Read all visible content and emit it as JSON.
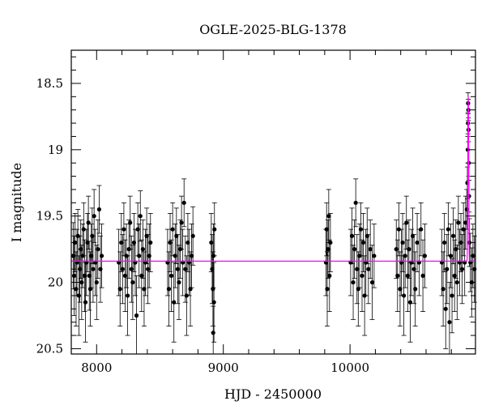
{
  "chart_data": {
    "type": "scatter",
    "title": "OGLE-2025-BLG-1378",
    "xlabel": "HJD - 2450000",
    "ylabel": "I magnitude",
    "xlim": [
      7800,
      10990
    ],
    "ylim": [
      20.54,
      18.25
    ],
    "y_inverted": true,
    "x_ticks": [
      8000,
      9000,
      10000
    ],
    "y_ticks": [
      18.5,
      19,
      19.5,
      20,
      20.5
    ],
    "y_tick_labels": [
      "18.5",
      "19",
      "19.5",
      "20",
      "20.5"
    ],
    "grid": false,
    "colors": {
      "points": "#000000",
      "model": "#ff00ff"
    },
    "model": {
      "baseline_mag": 19.84,
      "peak_hjd": 10933,
      "peak_mag": 18.6,
      "width_days": 4
    },
    "points": [
      [
        7815,
        19.8,
        0.25
      ],
      [
        7822,
        19.95,
        0.3
      ],
      [
        7830,
        19.7,
        0.22
      ],
      [
        7838,
        20.05,
        0.28
      ],
      [
        7845,
        19.85,
        0.25
      ],
      [
        7852,
        19.65,
        0.2
      ],
      [
        7860,
        20.1,
        0.3
      ],
      [
        7868,
        19.9,
        0.25
      ],
      [
        7875,
        19.75,
        0.22
      ],
      [
        7882,
        20.0,
        0.28
      ],
      [
        7890,
        19.8,
        0.24
      ],
      [
        7898,
        19.6,
        0.2
      ],
      [
        7905,
        19.95,
        0.27
      ],
      [
        7912,
        20.15,
        0.3
      ],
      [
        7920,
        19.85,
        0.25
      ],
      [
        7928,
        19.7,
        0.22
      ],
      [
        7935,
        19.55,
        0.2
      ],
      [
        7942,
        19.95,
        0.26
      ],
      [
        7950,
        20.05,
        0.28
      ],
      [
        7958,
        19.8,
        0.24
      ],
      [
        7965,
        19.65,
        0.21
      ],
      [
        7972,
        19.9,
        0.25
      ],
      [
        7980,
        19.5,
        0.2
      ],
      [
        7990,
        19.85,
        0.25
      ],
      [
        8000,
        20.0,
        0.28
      ],
      [
        8010,
        19.75,
        0.22
      ],
      [
        8020,
        19.45,
        0.18
      ],
      [
        8030,
        19.9,
        0.25
      ],
      [
        8040,
        19.8,
        0.24
      ],
      [
        8175,
        19.85,
        0.25
      ],
      [
        8185,
        20.05,
        0.28
      ],
      [
        8195,
        19.7,
        0.22
      ],
      [
        8205,
        19.9,
        0.26
      ],
      [
        8215,
        19.6,
        0.2
      ],
      [
        8225,
        19.95,
        0.27
      ],
      [
        8235,
        19.8,
        0.24
      ],
      [
        8245,
        20.1,
        0.3
      ],
      [
        8255,
        19.75,
        0.22
      ],
      [
        8265,
        19.55,
        0.2
      ],
      [
        8275,
        19.9,
        0.25
      ],
      [
        8285,
        20.0,
        0.28
      ],
      [
        8295,
        19.7,
        0.22
      ],
      [
        8305,
        19.85,
        0.25
      ],
      [
        8315,
        20.25,
        0.3
      ],
      [
        8325,
        19.6,
        0.2
      ],
      [
        8335,
        19.8,
        0.24
      ],
      [
        8345,
        19.5,
        0.19
      ],
      [
        8355,
        19.95,
        0.27
      ],
      [
        8365,
        19.75,
        0.22
      ],
      [
        8375,
        20.05,
        0.28
      ],
      [
        8385,
        19.85,
        0.25
      ],
      [
        8395,
        19.65,
        0.21
      ],
      [
        8405,
        19.9,
        0.26
      ],
      [
        8415,
        19.8,
        0.24
      ],
      [
        8425,
        19.7,
        0.22
      ],
      [
        8560,
        19.85,
        0.25
      ],
      [
        8570,
        20.05,
        0.28
      ],
      [
        8580,
        19.7,
        0.22
      ],
      [
        8590,
        19.95,
        0.27
      ],
      [
        8600,
        19.6,
        0.2
      ],
      [
        8610,
        20.15,
        0.3
      ],
      [
        8620,
        19.8,
        0.24
      ],
      [
        8630,
        19.65,
        0.21
      ],
      [
        8640,
        19.9,
        0.26
      ],
      [
        8650,
        20.0,
        0.28
      ],
      [
        8660,
        19.75,
        0.22
      ],
      [
        8670,
        19.55,
        0.2
      ],
      [
        8680,
        19.85,
        0.25
      ],
      [
        8690,
        19.4,
        0.18
      ],
      [
        8700,
        19.9,
        0.25
      ],
      [
        8710,
        20.1,
        0.3
      ],
      [
        8720,
        19.7,
        0.22
      ],
      [
        8730,
        19.85,
        0.25
      ],
      [
        8740,
        20.05,
        0.28
      ],
      [
        8750,
        19.8,
        0.24
      ],
      [
        8760,
        19.65,
        0.22
      ],
      [
        8905,
        19.7,
        0.22
      ],
      [
        8912,
        19.9,
        0.26
      ],
      [
        8918,
        20.05,
        0.28
      ],
      [
        8922,
        19.8,
        0.24
      ],
      [
        8926,
        20.15,
        0.3
      ],
      [
        8930,
        19.6,
        0.2
      ],
      [
        8920,
        20.38,
        0.2
      ],
      [
        9810,
        19.85,
        0.25
      ],
      [
        9815,
        19.6,
        0.2
      ],
      [
        9820,
        20.05,
        0.28
      ],
      [
        9826,
        19.75,
        0.22
      ],
      [
        9832,
        19.5,
        0.2
      ],
      [
        9838,
        19.95,
        0.27
      ],
      [
        9845,
        19.7,
        0.22
      ],
      [
        10005,
        19.85,
        0.25
      ],
      [
        10015,
        19.65,
        0.21
      ],
      [
        10025,
        20.0,
        0.28
      ],
      [
        10035,
        19.75,
        0.22
      ],
      [
        10045,
        19.4,
        0.18
      ],
      [
        10055,
        19.9,
        0.26
      ],
      [
        10065,
        20.05,
        0.28
      ],
      [
        10075,
        19.8,
        0.24
      ],
      [
        10085,
        19.6,
        0.2
      ],
      [
        10095,
        19.95,
        0.27
      ],
      [
        10105,
        19.7,
        0.22
      ],
      [
        10115,
        20.1,
        0.3
      ],
      [
        10125,
        19.85,
        0.25
      ],
      [
        10135,
        19.65,
        0.21
      ],
      [
        10145,
        19.9,
        0.26
      ],
      [
        10160,
        19.75,
        0.22
      ],
      [
        10175,
        20.0,
        0.28
      ],
      [
        10190,
        19.8,
        0.24
      ],
      [
        10365,
        19.75,
        0.22
      ],
      [
        10375,
        19.95,
        0.27
      ],
      [
        10385,
        19.6,
        0.2
      ],
      [
        10395,
        20.05,
        0.28
      ],
      [
        10405,
        19.85,
        0.25
      ],
      [
        10415,
        19.7,
        0.22
      ],
      [
        10425,
        20.1,
        0.3
      ],
      [
        10435,
        19.8,
        0.24
      ],
      [
        10445,
        19.55,
        0.2
      ],
      [
        10455,
        19.95,
        0.27
      ],
      [
        10465,
        19.75,
        0.22
      ],
      [
        10475,
        20.15,
        0.3
      ],
      [
        10485,
        19.85,
        0.25
      ],
      [
        10495,
        19.65,
        0.21
      ],
      [
        10505,
        19.9,
        0.26
      ],
      [
        10515,
        20.05,
        0.28
      ],
      [
        10530,
        19.7,
        0.22
      ],
      [
        10545,
        19.85,
        0.25
      ],
      [
        10560,
        19.6,
        0.2
      ],
      [
        10575,
        19.95,
        0.27
      ],
      [
        10590,
        19.8,
        0.24
      ],
      [
        10725,
        19.85,
        0.25
      ],
      [
        10735,
        20.05,
        0.28
      ],
      [
        10745,
        19.7,
        0.22
      ],
      [
        10755,
        20.2,
        0.3
      ],
      [
        10765,
        19.9,
        0.26
      ],
      [
        10775,
        19.6,
        0.2
      ],
      [
        10785,
        20.3,
        0.3
      ],
      [
        10795,
        19.8,
        0.24
      ],
      [
        10805,
        20.1,
        0.28
      ],
      [
        10815,
        19.65,
        0.21
      ],
      [
        10825,
        19.95,
        0.27
      ],
      [
        10835,
        19.75,
        0.22
      ],
      [
        10845,
        20.0,
        0.28
      ],
      [
        10855,
        19.55,
        0.2
      ],
      [
        10865,
        19.85,
        0.25
      ],
      [
        10875,
        19.7,
        0.22
      ],
      [
        10885,
        19.9,
        0.26
      ],
      [
        10895,
        19.6,
        0.2
      ],
      [
        10905,
        19.85,
        0.25
      ],
      [
        10912,
        19.55,
        0.2
      ],
      [
        10922,
        19.45,
        0.15
      ],
      [
        10926,
        19.25,
        0.12
      ],
      [
        10929,
        19.0,
        0.1
      ],
      [
        10931,
        18.8,
        0.08
      ],
      [
        10932,
        18.65,
        0.08
      ],
      [
        10934,
        18.7,
        0.08
      ],
      [
        10935,
        18.85,
        0.09
      ],
      [
        10937,
        19.1,
        0.1
      ],
      [
        10939,
        19.35,
        0.12
      ],
      [
        10942,
        19.7,
        0.18
      ],
      [
        10950,
        19.85,
        0.22
      ],
      [
        10960,
        20.0,
        0.26
      ],
      [
        10970,
        19.8,
        0.24
      ],
      [
        10982,
        19.9,
        0.25
      ]
    ]
  }
}
